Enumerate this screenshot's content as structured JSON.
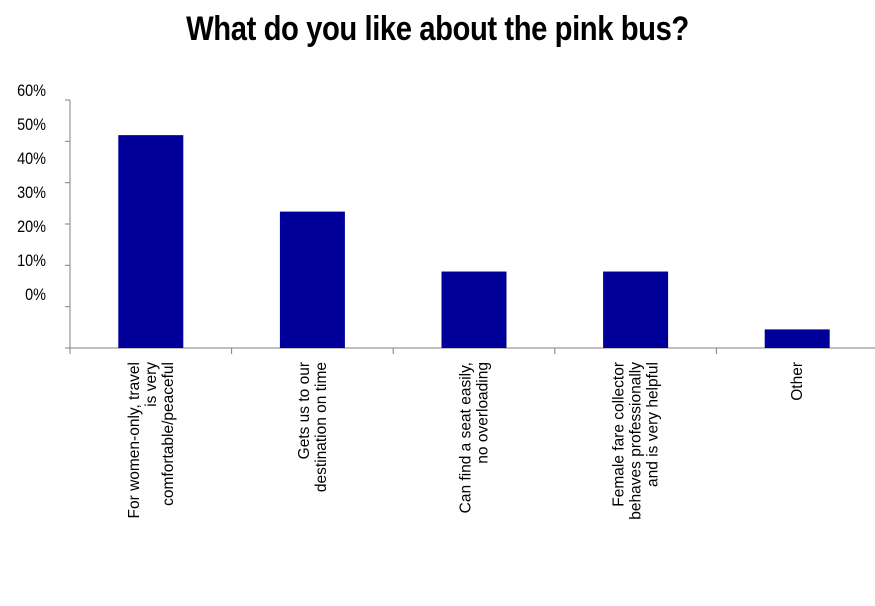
{
  "chart_data": {
    "type": "bar",
    "title": "What do you like about the pink bus?",
    "categories": [
      [
        "For women-only, travel",
        "is very",
        "comfortable/peaceful"
      ],
      [
        "Gets us to our",
        "destination on time"
      ],
      [
        "Can find a seat easily,",
        "no overloading"
      ],
      [
        "Female fare collector",
        "behaves professionally",
        "and is very helpful"
      ],
      [
        "Other"
      ]
    ],
    "values": [
      51.5,
      33,
      18.5,
      18.5,
      4.5
    ],
    "ytick_labels": [
      "60%",
      "50%",
      "40%",
      "30%",
      "20%",
      "10%",
      "0%"
    ],
    "ylim": [
      0,
      60
    ],
    "bar_color": "#000099",
    "xlabel": "",
    "ylabel": "",
    "legend": false,
    "grid": false
  }
}
